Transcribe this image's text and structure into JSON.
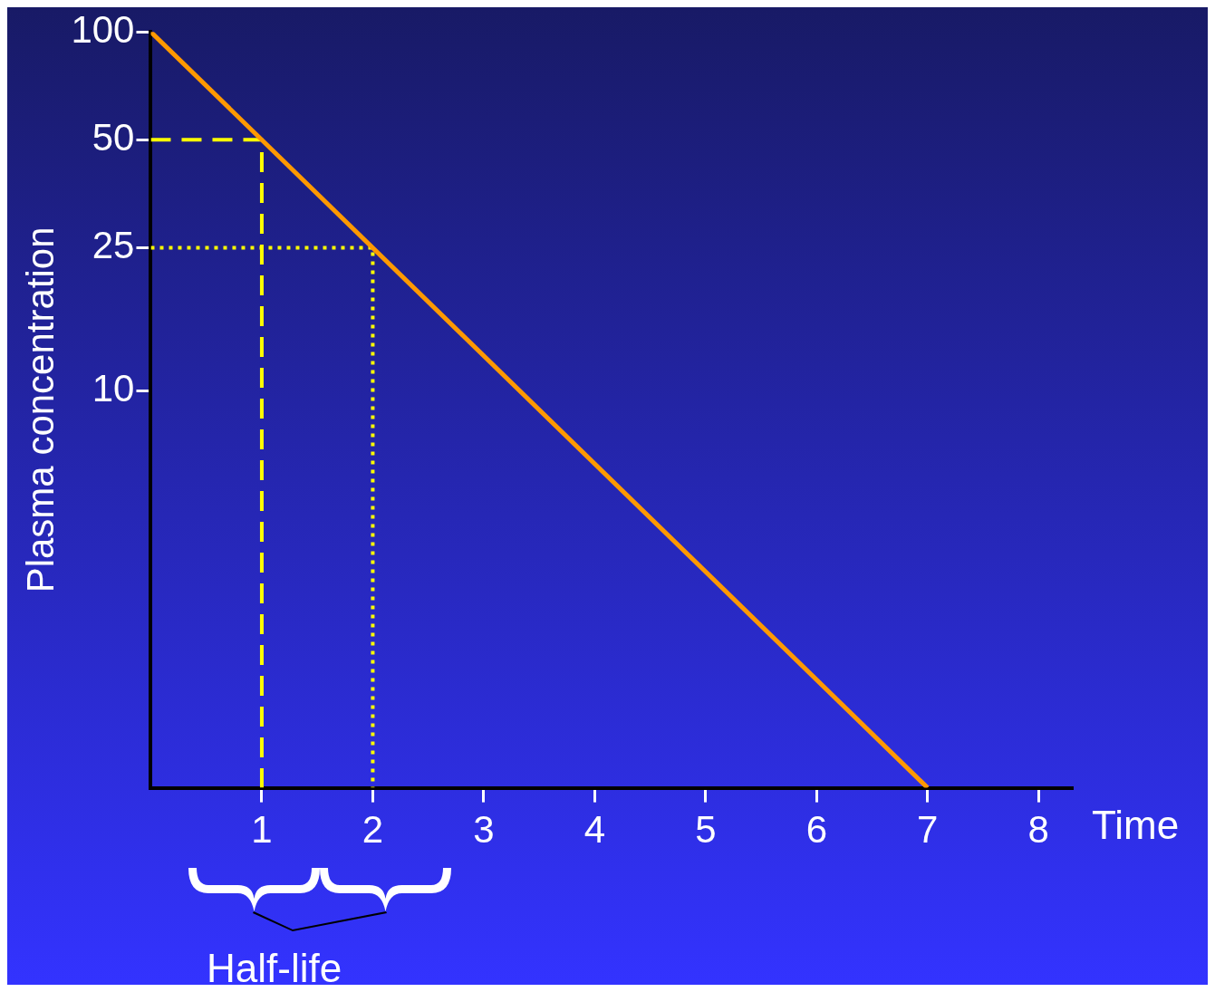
{
  "chart_data": {
    "type": "line",
    "xlabel": "Time",
    "ylabel": "Plasma concentration",
    "log": "y",
    "xlim": [
      0,
      8.3
    ],
    "xticks": [
      1,
      2,
      3,
      4,
      5,
      6,
      7,
      8
    ],
    "ylim": [
      0.78,
      100
    ],
    "yticks": [
      10,
      25,
      50,
      100
    ],
    "grid": false,
    "legend": false,
    "marker": "none",
    "annotations": [
      "Half-life"
    ],
    "series": [
      {
        "color": "#ff9900",
        "x": [
          0,
          7
        ],
        "values": [
          100,
          0.78
        ]
      },
      {
        "color": "#ffff00",
        "line_style": "dashed",
        "x": [
          0,
          1,
          1
        ],
        "values": [
          50,
          50,
          0.78
        ]
      },
      {
        "color": "#ffff00",
        "line_style": "dotted",
        "x": [
          0,
          2,
          2
        ],
        "values": [
          25,
          25,
          0.78
        ]
      }
    ]
  }
}
